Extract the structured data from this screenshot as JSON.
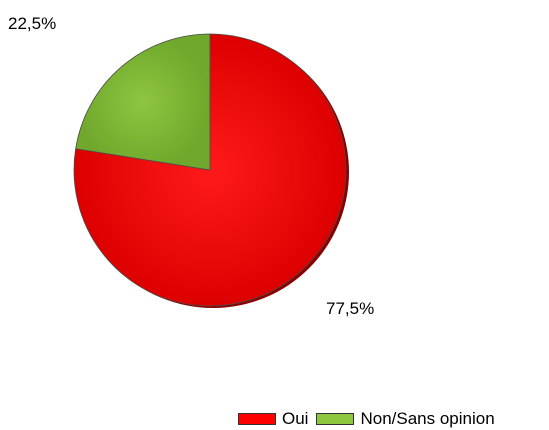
{
  "chart_data": {
    "type": "pie",
    "title": "",
    "categories": [
      "Oui",
      "Non/Sans opinion"
    ],
    "values": [
      77.5,
      22.5
    ],
    "value_labels": [
      "77,5%",
      "22,5%"
    ],
    "colors": [
      "#ff0000",
      "#8dc63f"
    ],
    "start_angle": "12 o'clock, clockwise",
    "legend_position": "bottom-right"
  }
}
